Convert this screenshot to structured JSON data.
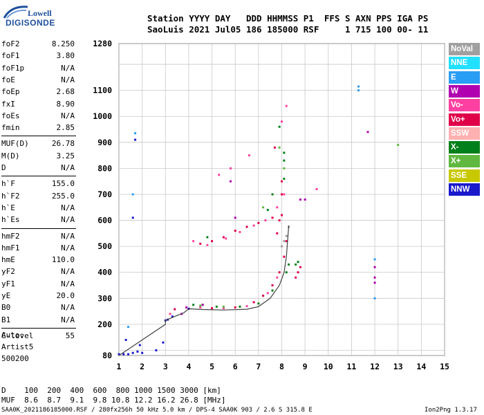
{
  "logo": {
    "line1": "Lowell",
    "line2": "DIGISONDE"
  },
  "header": {
    "row1": "Station YYYY DAY   DDD HHMMSS P1  FFS S AXN PPS IGA PS",
    "row2": "SaoLuis 2021 Jul05 186 185000 RSF     1 715 100 00- 11"
  },
  "params": [
    {
      "k": "foF2",
      "v": "8.250"
    },
    {
      "k": "foF1",
      "v": "3.80"
    },
    {
      "k": "foF1p",
      "v": "N/A"
    },
    {
      "k": "foE",
      "v": "N/A"
    },
    {
      "k": "foEp",
      "v": "2.68"
    },
    {
      "k": "fxI",
      "v": "8.90"
    },
    {
      "k": "foEs",
      "v": "N/A"
    },
    {
      "k": "fmin",
      "v": "2.85"
    },
    {
      "k": "MUF(D)",
      "v": "26.78"
    },
    {
      "k": "M(D)",
      "v": "3.25"
    },
    {
      "k": "D",
      "v": "N/A"
    },
    {
      "k": "h`F",
      "v": "155.0"
    },
    {
      "k": "h`F2",
      "v": "255.0"
    },
    {
      "k": "h`E",
      "v": "N/A"
    },
    {
      "k": "h`Es",
      "v": "N/A"
    },
    {
      "k": "hmF2",
      "v": "N/A"
    },
    {
      "k": "hmF1",
      "v": "N/A"
    },
    {
      "k": "hmE",
      "v": "110.0"
    },
    {
      "k": "yF2",
      "v": "N/A"
    },
    {
      "k": "yF1",
      "v": "N/A"
    },
    {
      "k": "yE",
      "v": "20.0"
    },
    {
      "k": "B0",
      "v": "N/A"
    },
    {
      "k": "B1",
      "v": "N/A"
    },
    {
      "k": "C-level",
      "v": "55"
    }
  ],
  "auto": {
    "l1": "Auto:",
    "l2": "Artist5",
    "l3": "500200"
  },
  "legend": [
    {
      "label": "NoVal",
      "color": "#a0a0a0"
    },
    {
      "label": "NNE",
      "color": "#22e0ff"
    },
    {
      "label": "E",
      "color": "#2a9df4"
    },
    {
      "label": "W",
      "color": "#b000b0"
    },
    {
      "label": "Vo-",
      "color": "#ff40a0"
    },
    {
      "label": "Vo+",
      "color": "#e0004a"
    },
    {
      "label": "SSW",
      "color": "#ffb0b0"
    },
    {
      "label": "X-",
      "color": "#00801a"
    },
    {
      "label": "X+",
      "color": "#60b840"
    },
    {
      "label": "SSE",
      "color": "#c8c800"
    },
    {
      "label": "NNW",
      "color": "#1a1acc"
    }
  ],
  "footer": {
    "d_row": "D    100  200  400  600  800 1000 1500 3000 [km]",
    "muf_row": "MUF  8.6  8.7  9.1  9.8 10.8 12.2 16.2 26.8 [MHz]",
    "bottom": "SAA0K_2021186185000.RSF / 280fx256h 50 kHz 5.0 km / DPS-4 SAA0K 903 / 2.6 S 315.8 E",
    "version": "Ion2Png 1.3.17"
  },
  "chart_data": {
    "type": "scatter",
    "xlim": [
      1,
      15
    ],
    "ylim": [
      80,
      1280
    ],
    "x_ticks": [
      1,
      2,
      3,
      4,
      5,
      6,
      7,
      8,
      9,
      10,
      11,
      12,
      13,
      14,
      15
    ],
    "y_ticks": [
      80,
      200,
      300,
      400,
      500,
      600,
      700,
      800,
      900,
      1000,
      1100,
      1280
    ],
    "y_tick_labels": [
      "80",
      "200",
      "300",
      "400",
      "500",
      "600",
      "700",
      "800",
      "900",
      "1000",
      "1100",
      "1280"
    ],
    "grid": true,
    "series": [
      {
        "color": "#e0004a",
        "points": [
          [
            3.4,
            258
          ],
          [
            4.0,
            260
          ],
          [
            5.0,
            262
          ],
          [
            6.0,
            265
          ],
          [
            6.8,
            285
          ],
          [
            7.2,
            310
          ],
          [
            7.6,
            350
          ],
          [
            7.9,
            400
          ],
          [
            8.1,
            460
          ],
          [
            8.2,
            520
          ],
          [
            7.8,
            550
          ],
          [
            7.9,
            600
          ],
          [
            8.0,
            620
          ],
          [
            7.6,
            610
          ],
          [
            7.0,
            590
          ],
          [
            6.5,
            575
          ],
          [
            6.0,
            560
          ],
          [
            5.5,
            535
          ],
          [
            5.0,
            520
          ],
          [
            4.5,
            510
          ],
          [
            8.8,
            420
          ],
          [
            8.7,
            400
          ],
          [
            8.6,
            380
          ],
          [
            8.0,
            700
          ],
          [
            8.0,
            750
          ],
          [
            7.7,
            880
          ]
        ]
      },
      {
        "color": "#ff40a0",
        "points": [
          [
            3.2,
            240
          ],
          [
            4.5,
            265
          ],
          [
            5.5,
            262
          ],
          [
            6.5,
            270
          ],
          [
            7.4,
            320
          ],
          [
            7.8,
            380
          ],
          [
            4.2,
            520
          ],
          [
            4.8,
            505
          ],
          [
            5.6,
            530
          ],
          [
            6.2,
            555
          ],
          [
            6.8,
            580
          ],
          [
            7.3,
            600
          ],
          [
            7.8,
            650
          ],
          [
            8.1,
            700
          ],
          [
            8.0,
            980
          ],
          [
            8.2,
            1040
          ],
          [
            9.5,
            720
          ],
          [
            6.6,
            850
          ],
          [
            5.8,
            800
          ],
          [
            5.3,
            775
          ]
        ]
      },
      {
        "color": "#00801a",
        "points": [
          [
            4.2,
            275
          ],
          [
            4.6,
            275
          ],
          [
            5.2,
            268
          ],
          [
            6.2,
            268
          ],
          [
            7.0,
            280
          ],
          [
            7.6,
            330
          ],
          [
            8.2,
            400
          ],
          [
            8.3,
            430
          ],
          [
            8.6,
            430
          ],
          [
            8.7,
            440
          ],
          [
            8.1,
            760
          ],
          [
            8.1,
            830
          ],
          [
            8.1,
            860
          ],
          [
            7.9,
            960
          ],
          [
            7.6,
            700
          ],
          [
            7.4,
            640
          ],
          [
            4.8,
            535
          ]
        ]
      },
      {
        "color": "#60b840",
        "points": [
          [
            4.5,
            272
          ],
          [
            5.5,
            268
          ],
          [
            7.9,
            880
          ],
          [
            8.1,
            800
          ],
          [
            7.2,
            650
          ],
          [
            13.0,
            890
          ]
        ]
      },
      {
        "color": "#1a1acc",
        "points": [
          [
            1.0,
            85
          ],
          [
            1.2,
            85
          ],
          [
            1.4,
            85
          ],
          [
            1.6,
            90
          ],
          [
            1.8,
            95
          ],
          [
            2.0,
            90
          ],
          [
            2.9,
            130
          ],
          [
            3.0,
            215
          ],
          [
            3.1,
            218
          ],
          [
            3.3,
            230
          ],
          [
            1.3,
            140
          ],
          [
            1.9,
            120
          ],
          [
            1.6,
            610
          ],
          [
            1.7,
            910
          ],
          [
            2.6,
            100
          ],
          [
            4.0,
            260
          ]
        ]
      },
      {
        "color": "#2a9df4",
        "points": [
          [
            1.4,
            190
          ],
          [
            1.6,
            700
          ],
          [
            1.7,
            935
          ],
          [
            11.3,
            1115
          ],
          [
            11.3,
            1100
          ],
          [
            12.0,
            450
          ],
          [
            12.0,
            300
          ]
        ]
      },
      {
        "color": "#b000b0",
        "points": [
          [
            8.8,
            680
          ],
          [
            9.0,
            680
          ],
          [
            11.7,
            940
          ],
          [
            12.0,
            420
          ],
          [
            12.0,
            380
          ],
          [
            12.0,
            360
          ],
          [
            5.8,
            750
          ],
          [
            6.0,
            610
          ],
          [
            3.7,
            240
          ],
          [
            3.9,
            265
          ],
          [
            4.6,
            275
          ]
        ]
      },
      {
        "color": "#a0a0a0",
        "points": [
          [
            8.3,
            575
          ],
          [
            8.2,
            540
          ],
          [
            8.1,
            520
          ],
          [
            8.0,
            500
          ]
        ]
      }
    ],
    "trace_x": [
      1.0,
      3.0,
      3.0,
      3.4,
      3.8,
      4.0,
      4.6,
      5.5,
      6.5,
      7.0,
      7.5,
      7.9,
      8.1,
      8.2,
      8.3
    ],
    "trace_y": [
      80,
      200,
      215,
      230,
      245,
      260,
      257,
      255,
      258,
      268,
      300,
      350,
      400,
      460,
      580
    ]
  }
}
